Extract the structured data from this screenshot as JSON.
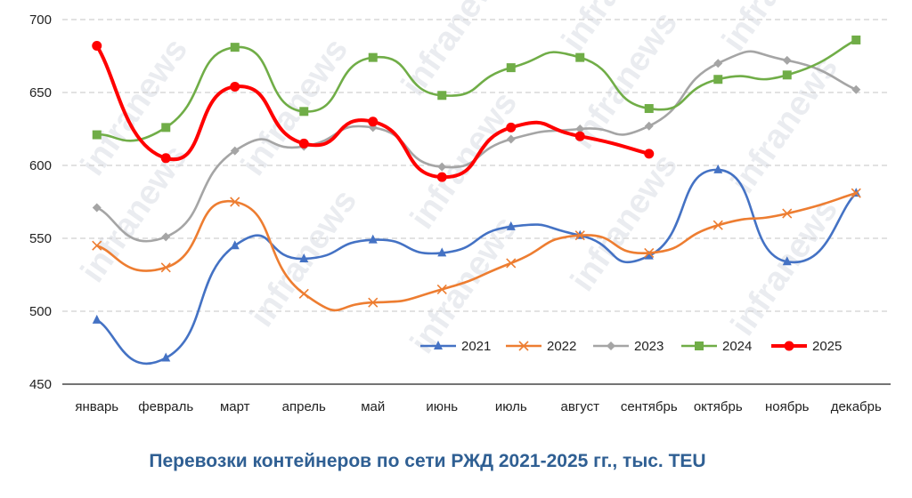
{
  "chart_data": {
    "type": "line",
    "title": "Перевозки контейнеров по сети РЖД 2021-2025 гг., тыс. TEU",
    "watermark": "infranews",
    "categories": [
      "январь",
      "февраль",
      "март",
      "апрель",
      "май",
      "июнь",
      "июль",
      "август",
      "сентябрь",
      "октябрь",
      "ноябрь",
      "декабрь"
    ],
    "ylim": [
      450,
      700
    ],
    "yticks": [
      450,
      500,
      550,
      600,
      650,
      700
    ],
    "grid": true,
    "legend_position": "bottom-right",
    "series": [
      {
        "name": "2021",
        "color": "#4472c4",
        "marker": "triangle",
        "values": [
          494,
          468,
          545,
          536,
          549,
          540,
          558,
          552,
          538,
          597,
          534,
          581
        ]
      },
      {
        "name": "2022",
        "color": "#ed7d31",
        "marker": "x",
        "values": [
          545,
          530,
          575,
          512,
          506,
          515,
          533,
          552,
          540,
          559,
          567,
          581
        ]
      },
      {
        "name": "2023",
        "color": "#a5a5a5",
        "marker": "diamond",
        "values": [
          571,
          551,
          610,
          613,
          626,
          599,
          618,
          625,
          627,
          670,
          672,
          652
        ]
      },
      {
        "name": "2024",
        "color": "#70ad47",
        "marker": "square",
        "values": [
          621,
          626,
          681,
          637,
          674,
          648,
          667,
          674,
          639,
          659,
          662,
          686
        ]
      },
      {
        "name": "2025",
        "color": "#ff0000",
        "marker": "circle",
        "values": [
          682,
          605,
          654,
          615,
          630,
          592,
          626,
          620,
          608,
          null,
          null,
          null
        ]
      }
    ]
  }
}
